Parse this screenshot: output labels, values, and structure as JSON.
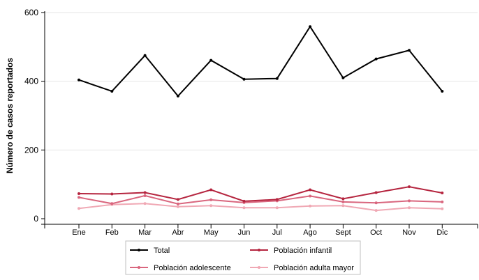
{
  "chart_data": {
    "type": "line",
    "categories": [
      "Ene",
      "Feb",
      "Mar",
      "Abr",
      "May",
      "Jun",
      "Jul",
      "Ago",
      "Sept",
      "Oct",
      "Nov",
      "Dic"
    ],
    "ylabel": "Número de casos reportados",
    "xlabel": "",
    "ylim": [
      0,
      600
    ],
    "yticks": [
      0,
      200,
      400,
      600
    ],
    "grid": "horizontal",
    "legend_position": "bottom",
    "series": [
      {
        "name": "Total",
        "color": "#000000",
        "values": [
          404,
          371,
          475,
          357,
          461,
          406,
          408,
          559,
          410,
          465,
          490,
          371
        ]
      },
      {
        "name": "Población infantil",
        "color": "#b5253f",
        "values": [
          73,
          72,
          76,
          56,
          84,
          51,
          56,
          84,
          58,
          76,
          93,
          75
        ]
      },
      {
        "name": "Población adolescente",
        "color": "#d9667e",
        "values": [
          62,
          44,
          67,
          43,
          55,
          47,
          52,
          66,
          49,
          46,
          52,
          49
        ]
      },
      {
        "name": "Población adulta mayor",
        "color": "#f0a8b4",
        "values": [
          30,
          41,
          44,
          35,
          38,
          32,
          32,
          37,
          38,
          24,
          32,
          29
        ]
      }
    ]
  }
}
